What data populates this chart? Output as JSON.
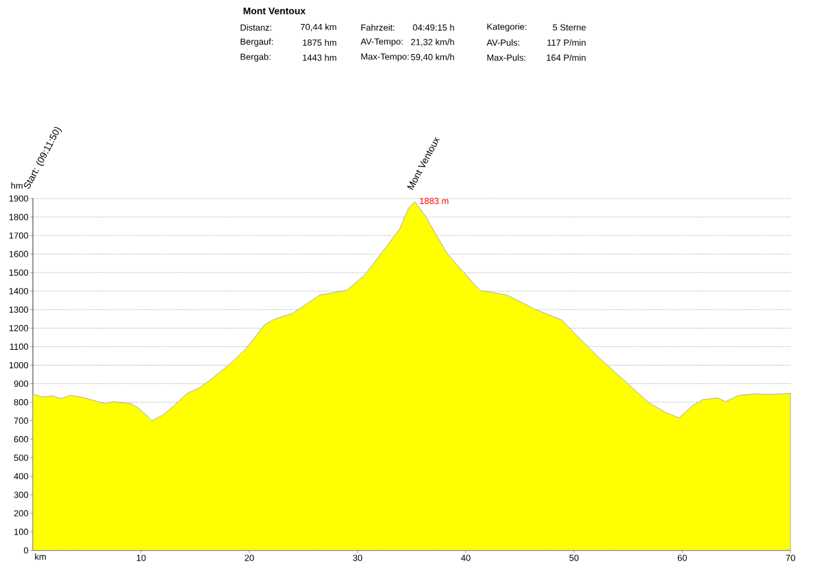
{
  "chart_data": {
    "type": "area",
    "title": "Mont Ventoux",
    "xlabel": "km",
    "ylabel": "hm",
    "annotations": [
      "Distanz:",
      "70,44 km",
      "Fahrzeit:",
      "04:49:15 h",
      "Kategorie:",
      "5 Sterne",
      "Bergauf:",
      "1875 hm",
      "AV-Tempo:",
      "21,32 km/h",
      "AV-Puls:",
      "117 P/min",
      "Bergab:",
      "1443 hm",
      "Max-Tempo:",
      "59,40 km/h",
      "Max-Puls:",
      "164 P/min",
      "Start: (09:11:50)",
      "Mont Ventoux"
    ],
    "series": [
      {
        "color": "#ffff00",
        "x": [
          0,
          0.4,
          0.9,
          1.8,
          2.6,
          3.5,
          4.7,
          6.7,
          7.4,
          9.1,
          9.8,
          11.0,
          12.0,
          13.0,
          14.2,
          15.4,
          16.4,
          18.3,
          19.7,
          21.4,
          22.3,
          24.0,
          26.5,
          29.0,
          30.7,
          32.8,
          33.9,
          34.7,
          35.3,
          36.2,
          38.3,
          39.8,
          41.3,
          43.8,
          46.3,
          48.9,
          50.1,
          52.2,
          55.1,
          57.0,
          58.5,
          59.7,
          60.9,
          61.9,
          63.3,
          64.0,
          65.2,
          66.7,
          68.2,
          70
        ],
        "values": [
          842,
          836,
          828,
          834,
          820,
          837,
          825,
          792,
          803,
          792,
          766,
          701,
          730,
          780,
          845,
          879,
          921,
          1011,
          1090,
          1218,
          1248,
          1280,
          1379,
          1404,
          1490,
          1651,
          1737,
          1848,
          1883,
          1811,
          1601,
          1502,
          1404,
          1379,
          1305,
          1243,
          1169,
          1046,
          893,
          794,
          744,
          715,
          780,
          814,
          823,
          803,
          837,
          845,
          842,
          848
        ],
        "value_labels": [
          null,
          null,
          null,
          null,
          null,
          null,
          null,
          null,
          null,
          null,
          null,
          null,
          null,
          null,
          null,
          null,
          null,
          null,
          null,
          null,
          null,
          null,
          null,
          null,
          null,
          null,
          null,
          null,
          "1883 m",
          null,
          null,
          null,
          null,
          null,
          null,
          null,
          null,
          null,
          null,
          null,
          null,
          null,
          null,
          null,
          null,
          null,
          null,
          null,
          null,
          null
        ]
      }
    ],
    "xlim": [
      0,
      70
    ],
    "xticks": [
      10,
      20,
      30,
      40,
      50,
      60,
      70
    ],
    "ylim": [
      0,
      1900
    ],
    "yticks": [
      0,
      100,
      200,
      300,
      400,
      500,
      600,
      700,
      800,
      900,
      1000,
      1100,
      1200,
      1300,
      1400,
      1500,
      1600,
      1700,
      1800,
      1900
    ],
    "grid": "y"
  }
}
